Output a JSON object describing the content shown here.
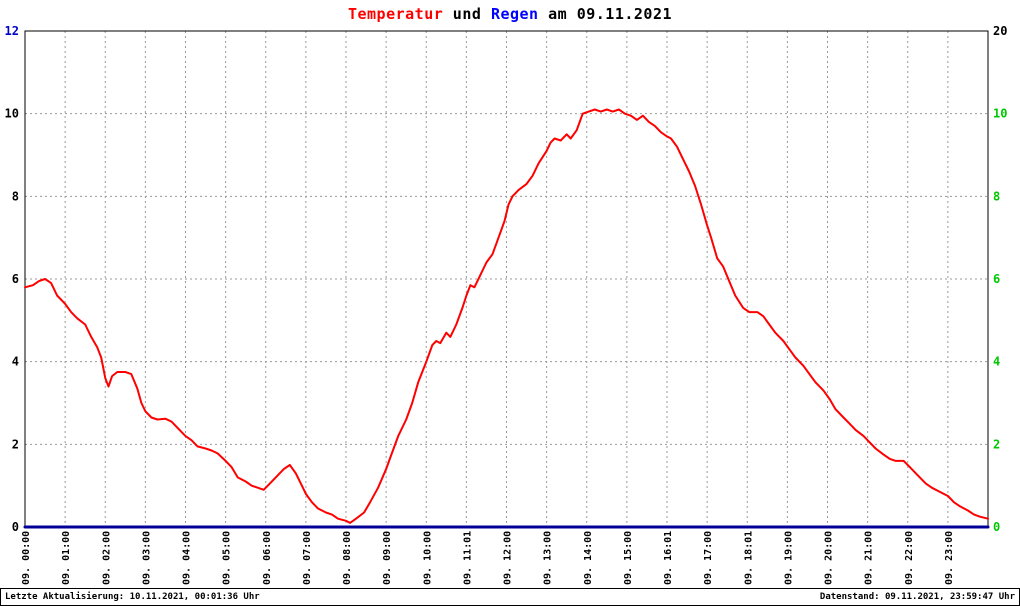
{
  "title": {
    "part1": "Temperatur",
    "part2": " und ",
    "part3": "Regen",
    "part4": " am 09.11.2021"
  },
  "footer": {
    "left": "Letzte Aktualisierung: 10.11.2021, 00:01:36 Uhr",
    "right": "Datenstand: 09.11.2021, 23:59:47 Uhr"
  },
  "colors": {
    "temperature": "#ff0000",
    "rain": "#000099",
    "title_temp": "#ff0000",
    "title_rain": "#0000ff",
    "grid": "#9a9a9a",
    "right_axis_green": "#00c800"
  },
  "chart_data": {
    "type": "line",
    "title": "Temperatur und Regen am 09.11.2021",
    "x_axis": {
      "range": [
        0,
        24
      ],
      "unit": "hour",
      "labels": [
        "09. 00:00",
        "09. 01:00",
        "09. 02:00",
        "09. 03:00",
        "09. 04:00",
        "09. 05:00",
        "09. 06:00",
        "09. 07:00",
        "09. 08:00",
        "09. 09:00",
        "09. 10:00",
        "09. 11:01",
        "09. 12:00",
        "09. 13:00",
        "09. 14:00",
        "09. 15:00",
        "09. 16:01",
        "09. 17:00",
        "09. 18:01",
        "09. 19:00",
        "09. 20:00",
        "09. 21:00",
        "09. 22:00",
        "09. 23:00"
      ]
    },
    "y_left": {
      "name": "Temperatur",
      "range": [
        0,
        12
      ],
      "ticks": [
        0,
        2,
        4,
        6,
        8,
        10,
        12
      ],
      "label_color": "#000000",
      "top_label_color": "#0000cc"
    },
    "y_right": {
      "name": "Regen",
      "ticks": [
        {
          "at": 12,
          "label": "20",
          "color": "#000000"
        },
        {
          "at": 10,
          "label": "10",
          "color": "#00c800"
        },
        {
          "at": 8,
          "label": "8",
          "color": "#00c800"
        },
        {
          "at": 6,
          "label": "6",
          "color": "#00c800"
        },
        {
          "at": 4,
          "label": "4",
          "color": "#00c800"
        },
        {
          "at": 2,
          "label": "2",
          "color": "#00c800"
        },
        {
          "at": 0,
          "label": "0",
          "color": "#00c800"
        }
      ]
    },
    "grid": {
      "color": "#9a9a9a",
      "dash": "2,3"
    },
    "legend": "none",
    "series": [
      {
        "name": "Temperatur",
        "color": "#ff0000",
        "width": 2,
        "points": [
          [
            0,
            5.8
          ],
          [
            0.2,
            5.85
          ],
          [
            0.35,
            5.95
          ],
          [
            0.5,
            6.0
          ],
          [
            0.65,
            5.9
          ],
          [
            0.8,
            5.6
          ],
          [
            1,
            5.4
          ],
          [
            1.15,
            5.2
          ],
          [
            1.3,
            5.05
          ],
          [
            1.5,
            4.9
          ],
          [
            1.65,
            4.6
          ],
          [
            1.8,
            4.35
          ],
          [
            1.9,
            4.1
          ],
          [
            2,
            3.6
          ],
          [
            2.08,
            3.4
          ],
          [
            2.17,
            3.65
          ],
          [
            2.3,
            3.75
          ],
          [
            2.5,
            3.75
          ],
          [
            2.65,
            3.7
          ],
          [
            2.8,
            3.35
          ],
          [
            2.9,
            3.0
          ],
          [
            3,
            2.8
          ],
          [
            3.15,
            2.65
          ],
          [
            3.3,
            2.6
          ],
          [
            3.5,
            2.62
          ],
          [
            3.65,
            2.55
          ],
          [
            3.8,
            2.4
          ],
          [
            4,
            2.2
          ],
          [
            4.15,
            2.1
          ],
          [
            4.3,
            1.95
          ],
          [
            4.5,
            1.9
          ],
          [
            4.65,
            1.85
          ],
          [
            4.8,
            1.78
          ],
          [
            5,
            1.6
          ],
          [
            5.15,
            1.45
          ],
          [
            5.3,
            1.2
          ],
          [
            5.5,
            1.1
          ],
          [
            5.65,
            1.0
          ],
          [
            5.8,
            0.95
          ],
          [
            5.95,
            0.9
          ],
          [
            6.1,
            1.05
          ],
          [
            6.3,
            1.25
          ],
          [
            6.45,
            1.4
          ],
          [
            6.6,
            1.5
          ],
          [
            6.75,
            1.3
          ],
          [
            6.9,
            1.0
          ],
          [
            7,
            0.8
          ],
          [
            7.15,
            0.6
          ],
          [
            7.3,
            0.45
          ],
          [
            7.5,
            0.35
          ],
          [
            7.65,
            0.3
          ],
          [
            7.8,
            0.2
          ],
          [
            8,
            0.15
          ],
          [
            8.1,
            0.1
          ],
          [
            8.25,
            0.2
          ],
          [
            8.45,
            0.35
          ],
          [
            8.6,
            0.6
          ],
          [
            8.8,
            0.95
          ],
          [
            9,
            1.4
          ],
          [
            9.15,
            1.8
          ],
          [
            9.3,
            2.2
          ],
          [
            9.5,
            2.6
          ],
          [
            9.65,
            3.0
          ],
          [
            9.8,
            3.5
          ],
          [
            10,
            4.0
          ],
          [
            10.15,
            4.4
          ],
          [
            10.25,
            4.5
          ],
          [
            10.35,
            4.45
          ],
          [
            10.5,
            4.7
          ],
          [
            10.6,
            4.6
          ],
          [
            10.75,
            4.9
          ],
          [
            10.9,
            5.3
          ],
          [
            11,
            5.6
          ],
          [
            11.1,
            5.85
          ],
          [
            11.2,
            5.8
          ],
          [
            11.35,
            6.1
          ],
          [
            11.5,
            6.4
          ],
          [
            11.65,
            6.6
          ],
          [
            11.8,
            7.0
          ],
          [
            11.95,
            7.4
          ],
          [
            12.05,
            7.8
          ],
          [
            12.15,
            8.0
          ],
          [
            12.3,
            8.15
          ],
          [
            12.5,
            8.3
          ],
          [
            12.65,
            8.5
          ],
          [
            12.8,
            8.8
          ],
          [
            13,
            9.1
          ],
          [
            13.1,
            9.3
          ],
          [
            13.2,
            9.4
          ],
          [
            13.35,
            9.35
          ],
          [
            13.5,
            9.5
          ],
          [
            13.6,
            9.4
          ],
          [
            13.75,
            9.6
          ],
          [
            13.9,
            10.0
          ],
          [
            14.05,
            10.05
          ],
          [
            14.2,
            10.1
          ],
          [
            14.35,
            10.05
          ],
          [
            14.5,
            10.1
          ],
          [
            14.65,
            10.05
          ],
          [
            14.8,
            10.1
          ],
          [
            14.95,
            10.0
          ],
          [
            15.1,
            9.95
          ],
          [
            15.25,
            9.85
          ],
          [
            15.4,
            9.95
          ],
          [
            15.55,
            9.8
          ],
          [
            15.7,
            9.7
          ],
          [
            15.85,
            9.55
          ],
          [
            16,
            9.45
          ],
          [
            16.1,
            9.4
          ],
          [
            16.25,
            9.2
          ],
          [
            16.4,
            8.9
          ],
          [
            16.55,
            8.6
          ],
          [
            16.7,
            8.25
          ],
          [
            16.85,
            7.8
          ],
          [
            17,
            7.3
          ],
          [
            17.1,
            7.0
          ],
          [
            17.25,
            6.5
          ],
          [
            17.4,
            6.3
          ],
          [
            17.55,
            5.95
          ],
          [
            17.7,
            5.6
          ],
          [
            17.9,
            5.3
          ],
          [
            18.05,
            5.2
          ],
          [
            18.25,
            5.2
          ],
          [
            18.4,
            5.1
          ],
          [
            18.55,
            4.9
          ],
          [
            18.7,
            4.7
          ],
          [
            18.9,
            4.5
          ],
          [
            19.05,
            4.3
          ],
          [
            19.2,
            4.1
          ],
          [
            19.4,
            3.9
          ],
          [
            19.55,
            3.7
          ],
          [
            19.7,
            3.5
          ],
          [
            19.9,
            3.3
          ],
          [
            20.05,
            3.1
          ],
          [
            20.2,
            2.85
          ],
          [
            20.4,
            2.65
          ],
          [
            20.55,
            2.5
          ],
          [
            20.7,
            2.35
          ],
          [
            20.9,
            2.2
          ],
          [
            21.05,
            2.05
          ],
          [
            21.2,
            1.9
          ],
          [
            21.4,
            1.75
          ],
          [
            21.55,
            1.65
          ],
          [
            21.7,
            1.6
          ],
          [
            21.9,
            1.6
          ],
          [
            22.05,
            1.45
          ],
          [
            22.2,
            1.3
          ],
          [
            22.45,
            1.05
          ],
          [
            22.6,
            0.95
          ],
          [
            22.8,
            0.85
          ],
          [
            23,
            0.75
          ],
          [
            23.15,
            0.6
          ],
          [
            23.3,
            0.5
          ],
          [
            23.5,
            0.4
          ],
          [
            23.65,
            0.3
          ],
          [
            23.8,
            0.25
          ],
          [
            24,
            0.2
          ]
        ]
      },
      {
        "name": "Regen",
        "color": "#000099",
        "width": 3,
        "points": [
          [
            0,
            0
          ],
          [
            24,
            0
          ]
        ]
      }
    ]
  }
}
